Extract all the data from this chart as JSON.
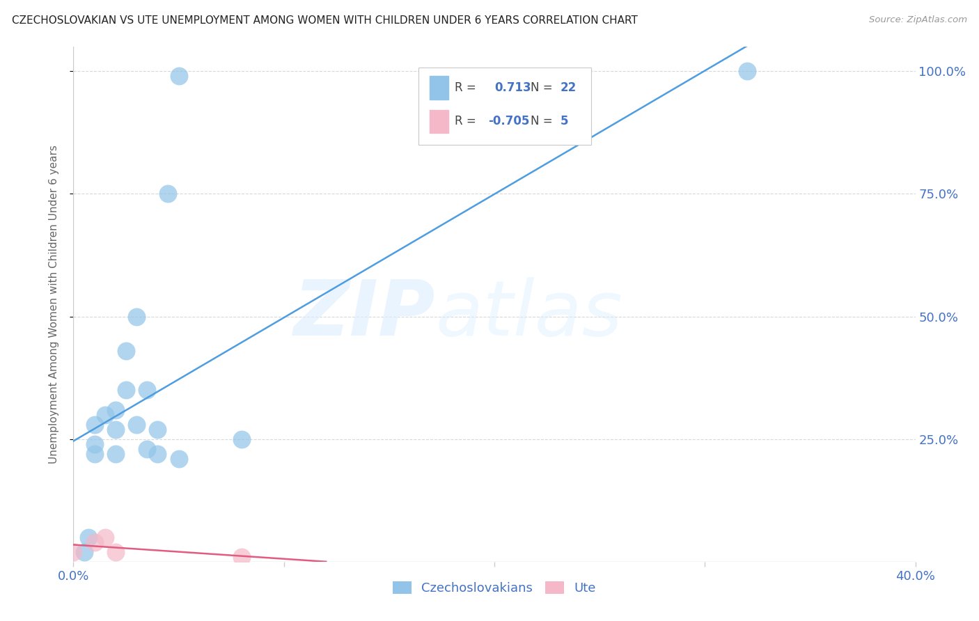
{
  "title": "CZECHOSLOVAKIAN VS UTE UNEMPLOYMENT AMONG WOMEN WITH CHILDREN UNDER 6 YEARS CORRELATION CHART",
  "source": "Source: ZipAtlas.com",
  "ylabel": "Unemployment Among Women with Children Under 6 years",
  "legend_label_blue": "Czechoslovakians",
  "legend_label_pink": "Ute",
  "blue_color": "#91c4e8",
  "pink_color": "#f4b8c8",
  "blue_line_color": "#4d9de0",
  "pink_line_color": "#e05c80",
  "watermark_zip": "ZIP",
  "watermark_atlas": "atlas",
  "blue_r_val": "0.713",
  "blue_n_val": "22",
  "pink_r_val": "-0.705",
  "pink_n_val": "5",
  "blue_scatter_x": [
    0.005,
    0.007,
    0.01,
    0.01,
    0.01,
    0.015,
    0.02,
    0.02,
    0.02,
    0.025,
    0.025,
    0.03,
    0.03,
    0.035,
    0.035,
    0.04,
    0.04,
    0.045,
    0.05,
    0.08,
    0.05,
    0.32
  ],
  "blue_scatter_y": [
    0.02,
    0.05,
    0.22,
    0.24,
    0.28,
    0.3,
    0.22,
    0.27,
    0.31,
    0.35,
    0.43,
    0.5,
    0.28,
    0.23,
    0.35,
    0.22,
    0.27,
    0.75,
    0.99,
    0.25,
    0.21,
    1.0
  ],
  "pink_scatter_x": [
    0.0,
    0.01,
    0.015,
    0.02,
    0.08
  ],
  "pink_scatter_y": [
    0.02,
    0.04,
    0.05,
    0.02,
    0.01
  ],
  "xlim": [
    0.0,
    0.4
  ],
  "ylim": [
    0.0,
    1.05
  ],
  "ytick_right_vals": [
    0.25,
    0.5,
    0.75,
    1.0
  ],
  "background_color": "#ffffff",
  "grid_color": "#d8d8d8",
  "text_color": "#4472C4",
  "axis_color": "#cccccc"
}
